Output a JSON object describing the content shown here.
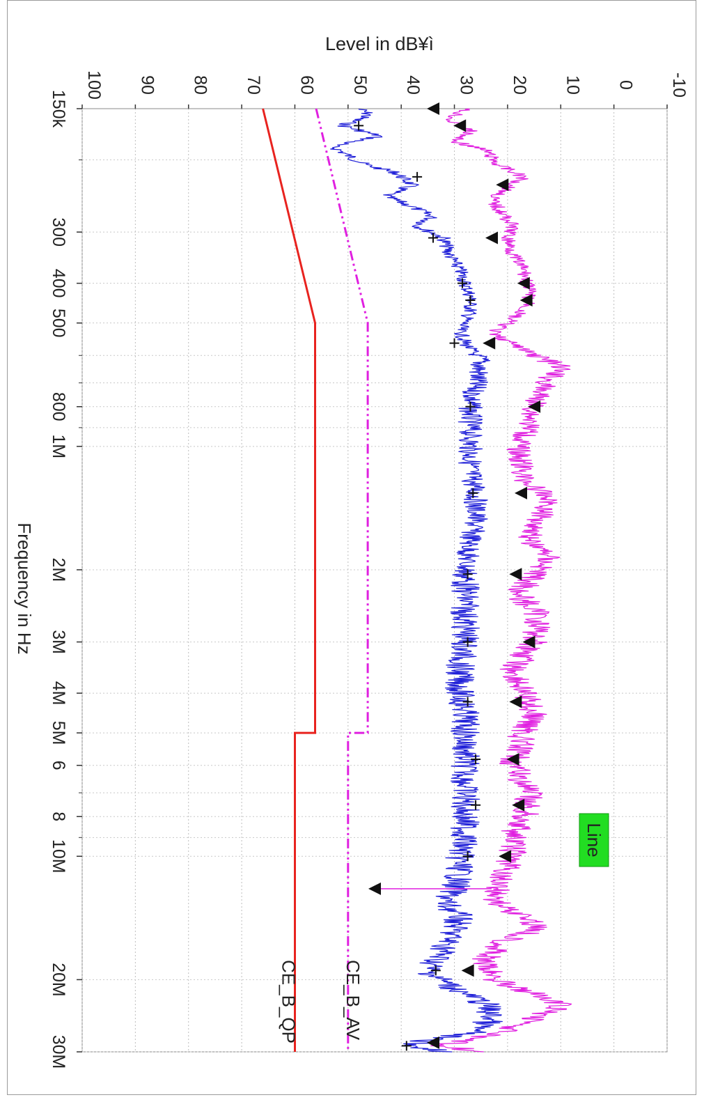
{
  "chart_data": {
    "type": "line",
    "orientation": "rotated 90 degrees clockwise",
    "ylabel": "Level in dB¥ì",
    "xlabel": "Frequency in Hz",
    "x_scale": "log",
    "xlim_hz": [
      150000,
      30000000
    ],
    "ylim": [
      -10,
      100
    ],
    "y_ticks": [
      -10,
      0,
      10,
      20,
      30,
      40,
      50,
      60,
      70,
      80,
      90,
      100
    ],
    "x_ticks": [
      {
        "hz": 150000,
        "label": "150k"
      },
      {
        "hz": 300000,
        "label": "300"
      },
      {
        "hz": 400000,
        "label": "400"
      },
      {
        "hz": 500000,
        "label": "500"
      },
      {
        "hz": 800000,
        "label": "800"
      },
      {
        "hz": 1000000,
        "label": "1M"
      },
      {
        "hz": 2000000,
        "label": "2M"
      },
      {
        "hz": 3000000,
        "label": "3M"
      },
      {
        "hz": 4000000,
        "label": "4M"
      },
      {
        "hz": 5000000,
        "label": "5M"
      },
      {
        "hz": 6000000,
        "label": "6"
      },
      {
        "hz": 8000000,
        "label": "8"
      },
      {
        "hz": 10000000,
        "label": "10M"
      },
      {
        "hz": 20000000,
        "label": "20M"
      },
      {
        "hz": 30000000,
        "label": "30M"
      }
    ],
    "grid": true,
    "badge": "Line",
    "limit_lines": [
      {
        "name": "CE_B_QP",
        "color": "#e8231f",
        "points": [
          [
            150000,
            66
          ],
          [
            500000,
            56.2
          ],
          [
            5000000,
            56.2
          ],
          [
            5000000,
            60
          ],
          [
            30000000,
            60
          ]
        ]
      },
      {
        "name": "CE_B_AV",
        "color": "#e020e0",
        "points": [
          [
            150000,
            56
          ],
          [
            500000,
            46.3
          ],
          [
            5000000,
            46.3
          ],
          [
            5000000,
            50
          ],
          [
            30000000,
            50
          ]
        ]
      }
    ],
    "series": [
      {
        "color": "#2020d8",
        "points": [
          [
            150000,
            48
          ],
          [
            155000,
            46
          ],
          [
            165000,
            51
          ],
          [
            175000,
            44
          ],
          [
            185000,
            53
          ],
          [
            195000,
            50
          ],
          [
            205000,
            47
          ],
          [
            215000,
            41
          ],
          [
            230000,
            38
          ],
          [
            245000,
            43
          ],
          [
            260000,
            38
          ],
          [
            275000,
            34
          ],
          [
            290000,
            37
          ],
          [
            310000,
            32
          ],
          [
            340000,
            31
          ],
          [
            370000,
            29
          ],
          [
            400000,
            28
          ],
          [
            430000,
            27
          ],
          [
            470000,
            27
          ],
          [
            520000,
            29
          ],
          [
            560000,
            28
          ],
          [
            620000,
            25
          ],
          [
            700000,
            26
          ],
          [
            800000,
            27
          ],
          [
            900000,
            27
          ],
          [
            1000000,
            27
          ],
          [
            1150000,
            27
          ],
          [
            1300000,
            26
          ],
          [
            1500000,
            26
          ],
          [
            1700000,
            27
          ],
          [
            2000000,
            28
          ],
          [
            2300000,
            28
          ],
          [
            2700000,
            28
          ],
          [
            3000000,
            28
          ],
          [
            3500000,
            29
          ],
          [
            4000000,
            29
          ],
          [
            4500000,
            28
          ],
          [
            5000000,
            28
          ],
          [
            6000000,
            28
          ],
          [
            7000000,
            28
          ],
          [
            8000000,
            28
          ],
          [
            9000000,
            28
          ],
          [
            10000000,
            29
          ],
          [
            11000000,
            29
          ],
          [
            12000000,
            30
          ],
          [
            13000000,
            32
          ],
          [
            14000000,
            29
          ],
          [
            15000000,
            30
          ],
          [
            17000000,
            32
          ],
          [
            19000000,
            35
          ],
          [
            21000000,
            30
          ],
          [
            23000000,
            24
          ],
          [
            25000000,
            23
          ],
          [
            27000000,
            27
          ],
          [
            28000000,
            35
          ],
          [
            29000000,
            38
          ],
          [
            30000000,
            31
          ]
        ]
      },
      {
        "color": "#e020e0",
        "points": [
          [
            150000,
            28
          ],
          [
            160000,
            31
          ],
          [
            170000,
            27
          ],
          [
            180000,
            30
          ],
          [
            190000,
            24
          ],
          [
            205000,
            22
          ],
          [
            220000,
            17
          ],
          [
            235000,
            20
          ],
          [
            250000,
            23
          ],
          [
            270000,
            21
          ],
          [
            290000,
            19
          ],
          [
            310000,
            20
          ],
          [
            340000,
            19
          ],
          [
            370000,
            17
          ],
          [
            410000,
            16
          ],
          [
            450000,
            16
          ],
          [
            500000,
            20
          ],
          [
            530000,
            23
          ],
          [
            580000,
            17
          ],
          [
            640000,
            10
          ],
          [
            700000,
            13
          ],
          [
            800000,
            15
          ],
          [
            900000,
            16
          ],
          [
            1000000,
            18
          ],
          [
            1200000,
            17
          ],
          [
            1350000,
            12
          ],
          [
            1500000,
            14
          ],
          [
            1700000,
            16
          ],
          [
            1850000,
            12
          ],
          [
            2000000,
            14
          ],
          [
            2300000,
            18
          ],
          [
            2600000,
            14
          ],
          [
            3000000,
            15
          ],
          [
            3500000,
            19
          ],
          [
            4000000,
            17
          ],
          [
            4500000,
            15
          ],
          [
            5000000,
            17
          ],
          [
            6000000,
            19
          ],
          [
            7000000,
            16
          ],
          [
            8000000,
            17
          ],
          [
            9000000,
            19
          ],
          [
            10000000,
            19
          ],
          [
            11000000,
            21
          ],
          [
            12000000,
            22
          ],
          [
            13000000,
            22
          ],
          [
            14000000,
            17
          ],
          [
            15000000,
            14
          ],
          [
            16000000,
            20
          ],
          [
            18000000,
            25
          ],
          [
            20000000,
            22
          ],
          [
            22000000,
            14
          ],
          [
            23000000,
            10
          ],
          [
            25000000,
            15
          ],
          [
            27000000,
            22
          ],
          [
            28000000,
            28
          ],
          [
            29000000,
            32
          ],
          [
            30000000,
            25
          ]
        ]
      }
    ],
    "markers_qp": [
      [
        165000,
        48
      ],
      [
        220000,
        37
      ],
      [
        310000,
        34
      ],
      [
        400000,
        28.5
      ],
      [
        440000,
        27
      ],
      [
        560000,
        30
      ],
      [
        800000,
        27
      ],
      [
        1300000,
        26.5
      ],
      [
        2050000,
        27.5
      ],
      [
        3000000,
        27.5
      ],
      [
        4200000,
        27.5
      ],
      [
        5800000,
        26
      ],
      [
        7500000,
        26
      ],
      [
        10000000,
        27.5
      ],
      [
        19000000,
        33.5
      ],
      [
        29000000,
        39
      ]
    ],
    "markers_av": [
      [
        150000,
        34
      ],
      [
        165000,
        29
      ],
      [
        230000,
        21
      ],
      [
        310000,
        23
      ],
      [
        400000,
        17
      ],
      [
        440000,
        16.5
      ],
      [
        560000,
        23.5
      ],
      [
        800000,
        15
      ],
      [
        1300000,
        17.5
      ],
      [
        2050000,
        18.5
      ],
      [
        3000000,
        16
      ],
      [
        4200000,
        18.5
      ],
      [
        5800000,
        19
      ],
      [
        7500000,
        18
      ],
      [
        10000000,
        20.5
      ],
      [
        12000000,
        45
      ],
      [
        19000000,
        27.5
      ],
      [
        28500000,
        34
      ]
    ]
  }
}
